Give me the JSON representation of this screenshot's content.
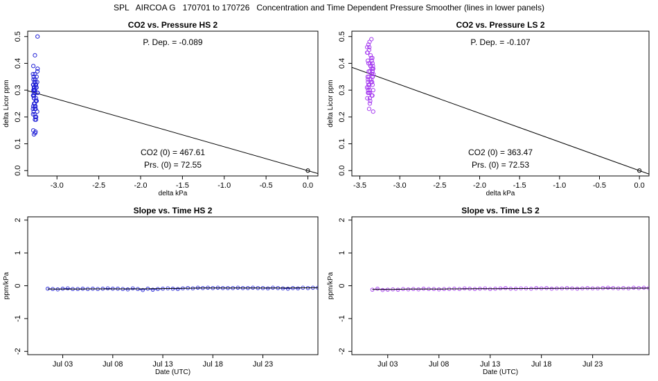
{
  "title": "SPL   AIRCOA G   170701 to 170726   Concentration and Time Dependent Pressure Smoother (lines in lower panels)",
  "colors": {
    "hs": "#1f1fd6",
    "ls": "#a63cf0",
    "line": "#000000"
  },
  "chart_data": [
    {
      "type": "scatter",
      "title": "CO2 vs. Pressure HS 2",
      "xlabel": "delta kPa",
      "ylabel": "delta Licor ppm",
      "xlim": [
        -3.35,
        0.12
      ],
      "ylim": [
        -0.02,
        0.52
      ],
      "xticks": [
        -3.0,
        -2.5,
        -2.0,
        -1.5,
        -1.0,
        -0.5,
        0.0
      ],
      "xtick_labels": [
        "-3.0",
        "-2.5",
        "-2.0",
        "-1.5",
        "-1.0",
        "-0.5",
        "0.0"
      ],
      "yticks": [
        0.0,
        0.1,
        0.2,
        0.3,
        0.4,
        0.5
      ],
      "ytick_labels": [
        "0.0",
        "0.1",
        "0.2",
        "0.3",
        "0.4",
        "0.5"
      ],
      "color": "#1f1fd6",
      "cluster": {
        "x_center": -3.26,
        "x_spread": 0.03,
        "y": [
          0.14,
          0.145,
          0.15,
          0.135,
          0.19,
          0.2,
          0.21,
          0.22,
          0.23,
          0.24,
          0.25,
          0.26,
          0.27,
          0.28,
          0.29,
          0.3,
          0.31,
          0.32,
          0.33,
          0.34,
          0.35,
          0.36,
          0.37,
          0.38,
          0.39,
          0.43,
          0.5,
          0.22,
          0.23,
          0.24,
          0.26,
          0.27,
          0.28,
          0.29,
          0.3,
          0.31,
          0.32,
          0.33,
          0.34,
          0.35,
          0.3,
          0.31,
          0.32,
          0.29,
          0.28,
          0.33,
          0.34,
          0.27,
          0.26,
          0.25,
          0.31,
          0.32,
          0.3,
          0.29,
          0.36,
          0.24,
          0.23,
          0.21,
          0.2,
          0.19
        ]
      },
      "origin_point": [
        0.0,
        0.0
      ],
      "fit_line": [
        [
          -3.35,
          0.298
        ],
        [
          0.12,
          -0.011
        ]
      ],
      "annotations": {
        "pdep": "P. Dep. =  -0.089",
        "co2": "CO2 (0) =  467.61",
        "prs": "Prs. (0) =  72.55"
      }
    },
    {
      "type": "scatter",
      "title": "CO2 vs. Pressure LS 2",
      "xlabel": "delta kPa",
      "ylabel": "delta Licor ppm",
      "xlim": [
        -3.6,
        0.12
      ],
      "ylim": [
        -0.02,
        0.52
      ],
      "xticks": [
        -3.5,
        -3.0,
        -2.5,
        -2.0,
        -1.5,
        -1.0,
        -0.5,
        0.0
      ],
      "xtick_labels": [
        "-3.5",
        "-3.0",
        "-2.5",
        "-2.0",
        "-1.5",
        "-1.0",
        "-0.5",
        "0.0"
      ],
      "yticks": [
        0.0,
        0.1,
        0.2,
        0.3,
        0.4,
        0.5
      ],
      "ytick_labels": [
        "0.0",
        "0.1",
        "0.2",
        "0.3",
        "0.4",
        "0.5"
      ],
      "color": "#a63cf0",
      "cluster": {
        "x_center": -3.37,
        "x_spread": 0.04,
        "y": [
          0.22,
          0.23,
          0.25,
          0.26,
          0.27,
          0.28,
          0.29,
          0.3,
          0.31,
          0.32,
          0.33,
          0.34,
          0.35,
          0.36,
          0.37,
          0.38,
          0.39,
          0.4,
          0.41,
          0.42,
          0.43,
          0.44,
          0.45,
          0.46,
          0.47,
          0.48,
          0.49,
          0.28,
          0.29,
          0.3,
          0.31,
          0.32,
          0.33,
          0.34,
          0.35,
          0.36,
          0.37,
          0.38,
          0.39,
          0.4,
          0.41,
          0.33,
          0.35,
          0.37,
          0.31,
          0.29,
          0.36,
          0.38,
          0.34,
          0.32,
          0.4,
          0.42,
          0.3,
          0.27,
          0.44,
          0.46,
          0.39,
          0.37,
          0.35,
          0.33
        ]
      },
      "origin_point": [
        0.0,
        0.0
      ],
      "fit_line": [
        [
          -3.6,
          0.385
        ],
        [
          0.12,
          -0.013
        ]
      ],
      "annotations": {
        "pdep": "P. Dep. =  -0.107",
        "co2": "CO2 (0) =  363.47",
        "prs": "Prs. (0) =  72.53"
      }
    },
    {
      "type": "line",
      "title": "Slope vs. Time HS 2",
      "xlabel": "Date (UTC)",
      "ylabel": "ppm/kPa",
      "xlim": [
        -1.5,
        27.5
      ],
      "ylim": [
        -2.1,
        2.1
      ],
      "xticks": [
        2,
        7,
        12,
        17,
        22
      ],
      "xtick_labels": [
        "Jul 03",
        "Jul 08",
        "Jul 13",
        "Jul 18",
        "Jul 23"
      ],
      "yticks": [
        -2,
        -1,
        0,
        1,
        2
      ],
      "ytick_labels": [
        "-2",
        "-1",
        "0",
        "1",
        "2"
      ],
      "color": "#1f1fd6",
      "x_start": 0.5,
      "x_step": 0.5,
      "values": [
        -0.09,
        -0.1,
        -0.11,
        -0.09,
        -0.08,
        -0.1,
        -0.1,
        -0.09,
        -0.1,
        -0.09,
        -0.1,
        -0.09,
        -0.08,
        -0.09,
        -0.09,
        -0.1,
        -0.11,
        -0.08,
        -0.1,
        -0.13,
        -0.09,
        -0.12,
        -0.1,
        -0.09,
        -0.08,
        -0.09,
        -0.1,
        -0.08,
        -0.07,
        -0.08,
        -0.06,
        -0.07,
        -0.06,
        -0.07,
        -0.06,
        -0.07,
        -0.07,
        -0.07,
        -0.06,
        -0.07,
        -0.07,
        -0.06,
        -0.07,
        -0.07,
        -0.08,
        -0.06,
        -0.07,
        -0.08,
        -0.09,
        -0.07,
        -0.08,
        -0.06,
        -0.07,
        -0.06,
        -0.06,
        -0.06,
        -0.07,
        -0.06,
        -0.07,
        -0.05,
        -0.06,
        -0.05,
        -0.06,
        -0.05,
        -0.06,
        -0.04,
        -0.06,
        -0.05,
        -0.06,
        -0.05
      ],
      "smooth": [
        -0.1,
        -0.1,
        -0.1,
        -0.1,
        -0.1,
        -0.1,
        -0.1,
        -0.1,
        -0.095,
        -0.095,
        -0.095,
        -0.095,
        -0.095,
        -0.095,
        -0.095,
        -0.095,
        -0.095,
        -0.095,
        -0.095,
        -0.095,
        -0.093,
        -0.09,
        -0.088,
        -0.086,
        -0.084,
        -0.082,
        -0.08,
        -0.078,
        -0.076,
        -0.074,
        -0.072,
        -0.07,
        -0.07,
        -0.07,
        -0.07,
        -0.07,
        -0.07,
        -0.07,
        -0.07,
        -0.07,
        -0.07,
        -0.07,
        -0.07,
        -0.07,
        -0.07,
        -0.07,
        -0.07,
        -0.07,
        -0.068,
        -0.066,
        -0.065,
        -0.064,
        -0.063,
        -0.062,
        -0.061,
        -0.06,
        -0.06,
        -0.059,
        -0.058,
        -0.057,
        -0.057,
        -0.056,
        -0.056,
        -0.055,
        -0.055,
        -0.055,
        -0.054,
        -0.054,
        -0.054,
        -0.054
      ]
    },
    {
      "type": "line",
      "title": "Slope vs. Time LS 2",
      "xlabel": "Date (UTC)",
      "ylabel": "ppm/kPa",
      "xlim": [
        -1.5,
        27.5
      ],
      "ylim": [
        -2.1,
        2.1
      ],
      "xticks": [
        2,
        7,
        12,
        17,
        22
      ],
      "xtick_labels": [
        "Jul 03",
        "Jul 08",
        "Jul 13",
        "Jul 18",
        "Jul 23"
      ],
      "yticks": [
        -2,
        -1,
        0,
        1,
        2
      ],
      "ytick_labels": [
        "-2",
        "-1",
        "0",
        "1",
        "2"
      ],
      "color": "#a63cf0",
      "x_start": 0.5,
      "x_step": 0.5,
      "values": [
        -0.12,
        -0.09,
        -0.13,
        -0.12,
        -0.11,
        -0.12,
        -0.1,
        -0.11,
        -0.1,
        -0.11,
        -0.09,
        -0.1,
        -0.1,
        -0.11,
        -0.1,
        -0.1,
        -0.09,
        -0.1,
        -0.08,
        -0.09,
        -0.1,
        -0.09,
        -0.08,
        -0.1,
        -0.09,
        -0.08,
        -0.07,
        -0.09,
        -0.09,
        -0.08,
        -0.08,
        -0.09,
        -0.07,
        -0.08,
        -0.07,
        -0.09,
        -0.08,
        -0.08,
        -0.07,
        -0.08,
        -0.09,
        -0.08,
        -0.07,
        -0.08,
        -0.08,
        -0.07,
        -0.06,
        -0.07,
        -0.08,
        -0.07,
        -0.08,
        -0.06,
        -0.07,
        -0.06,
        -0.07,
        -0.08,
        -0.07,
        -0.06,
        -0.07,
        -0.05,
        -0.07,
        -0.08,
        -0.06,
        -0.07,
        -0.06,
        -0.08,
        -0.06,
        -0.07,
        -0.06,
        -0.07
      ],
      "smooth": [
        -0.11,
        -0.11,
        -0.11,
        -0.11,
        -0.11,
        -0.105,
        -0.105,
        -0.1,
        -0.1,
        -0.1,
        -0.1,
        -0.1,
        -0.1,
        -0.1,
        -0.1,
        -0.095,
        -0.095,
        -0.095,
        -0.093,
        -0.092,
        -0.091,
        -0.09,
        -0.09,
        -0.09,
        -0.089,
        -0.088,
        -0.087,
        -0.086,
        -0.085,
        -0.085,
        -0.084,
        -0.083,
        -0.083,
        -0.082,
        -0.082,
        -0.081,
        -0.081,
        -0.08,
        -0.08,
        -0.08,
        -0.079,
        -0.079,
        -0.078,
        -0.078,
        -0.077,
        -0.077,
        -0.076,
        -0.076,
        -0.075,
        -0.075,
        -0.074,
        -0.074,
        -0.073,
        -0.073,
        -0.072,
        -0.072,
        -0.071,
        -0.071,
        -0.07,
        -0.07,
        -0.07,
        -0.069,
        -0.069,
        -0.068,
        -0.068,
        -0.068,
        -0.067,
        -0.067,
        -0.067,
        -0.067
      ]
    }
  ]
}
